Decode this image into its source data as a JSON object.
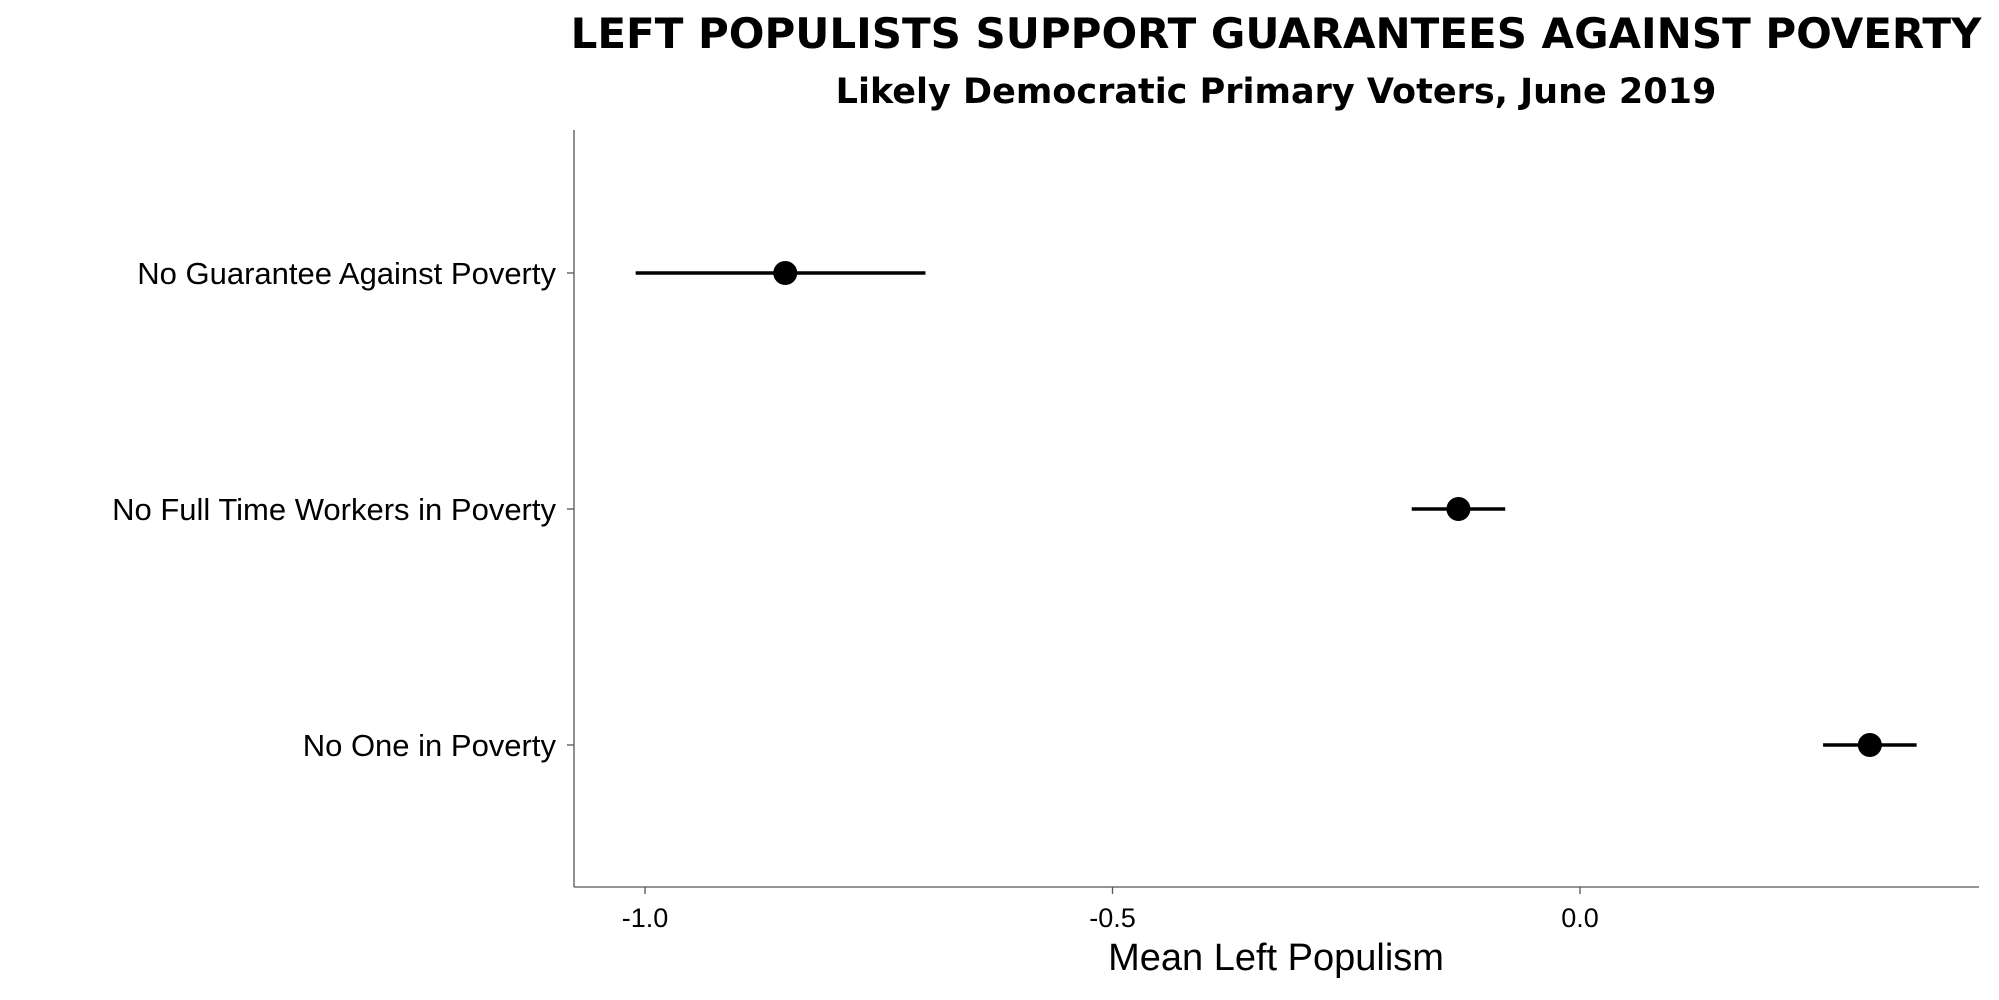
{
  "chart_data": {
    "type": "scatter",
    "title": "LEFT POPULISTS SUPPORT GUARANTEES AGAINST POVERTY",
    "subtitle": "Likely Democratic Primary Voters, June 2019",
    "xlabel": "Mean Left Populism",
    "ylabel": "",
    "xlim": [
      -1.09,
      0.43
    ],
    "xticks": [
      -1.0,
      -0.5,
      0.0
    ],
    "xtick_labels": [
      "-1.0",
      "-0.5",
      "0.0"
    ],
    "grid": false,
    "legend": "none",
    "categories": [
      "No Guarantee Against Poverty",
      "No Full Time Workers in Poverty",
      "No One in Poverty"
    ],
    "points": [
      {
        "category": "No Guarantee Against Poverty",
        "mean": -0.85,
        "low": -1.01,
        "high": -0.7
      },
      {
        "category": "No Full Time Workers in Poverty",
        "mean": -0.13,
        "low": -0.18,
        "high": -0.08
      },
      {
        "category": "No One in Poverty",
        "mean": 0.31,
        "low": 0.26,
        "high": 0.36
      }
    ],
    "colors": {
      "marks": "#000000",
      "axis": "#555555"
    }
  }
}
